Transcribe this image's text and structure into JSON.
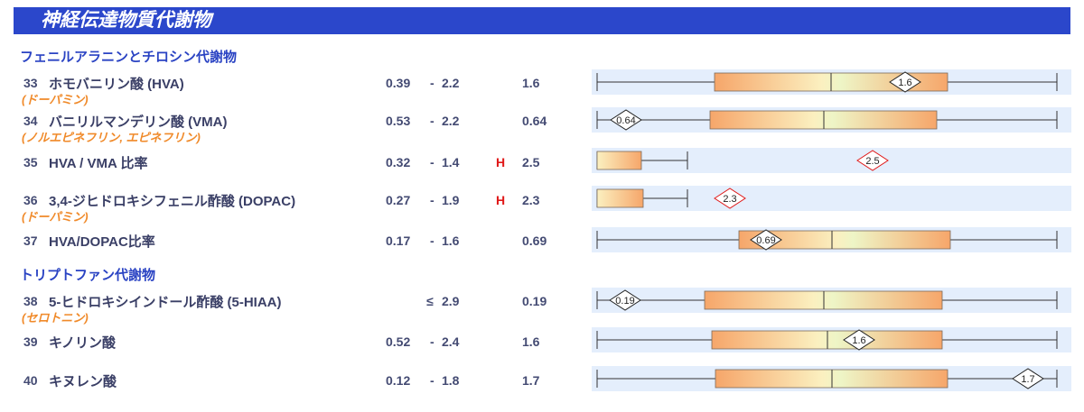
{
  "header": {
    "title": "神経伝達物質代謝物"
  },
  "sections": [
    {
      "label": "フェニルアラニンとチロシン代謝物"
    },
    {
      "label": "トリプトファン代謝物"
    }
  ],
  "rows": [
    {
      "num": "33",
      "name": "ホモバニリン酸 (HVA)",
      "sub": "(ドーパミン)",
      "low": "0.39",
      "dash": "-",
      "high": "2.2",
      "le": "",
      "flag": "",
      "value": "1.6",
      "marker": "1.6"
    },
    {
      "num": "34",
      "name": "バニリルマンデリン酸 (VMA)",
      "sub": "(ノルエピネフリン, エピネフリン)",
      "low": "0.53",
      "dash": "-",
      "high": "2.2",
      "le": "",
      "flag": "",
      "value": "0.64",
      "marker": "0.64"
    },
    {
      "num": "35",
      "name": "HVA / VMA 比率",
      "sub": "",
      "low": "0.32",
      "dash": "-",
      "high": "1.4",
      "le": "",
      "flag": "H",
      "value": "2.5",
      "marker": "2.5"
    },
    {
      "num": "36",
      "name": "3,4-ジヒドロキシフェニル酢酸 (DOPAC)",
      "sub": "(ドーパミン)",
      "low": "0.27",
      "dash": "-",
      "high": "1.9",
      "le": "",
      "flag": "H",
      "value": "2.3",
      "marker": "2.3"
    },
    {
      "num": "37",
      "name": "HVA/DOPAC比率",
      "sub": "",
      "low": "0.17",
      "dash": "-",
      "high": "1.6",
      "le": "",
      "flag": "",
      "value": "0.69",
      "marker": "0.69"
    },
    {
      "num": "38",
      "name": "5-ヒドロキシインドール酢酸 (5-HIAA)",
      "sub": "(セロトニン)",
      "low": "",
      "dash": "",
      "high": "2.9",
      "le": "≤",
      "flag": "",
      "value": "0.19",
      "marker": "0.19"
    },
    {
      "num": "39",
      "name": "キノリン酸",
      "sub": "",
      "low": "0.52",
      "dash": "-",
      "high": "2.4",
      "le": "",
      "flag": "",
      "value": "1.6",
      "marker": "1.6"
    },
    {
      "num": "40",
      "name": "キヌレン酸",
      "sub": "",
      "low": "0.12",
      "dash": "-",
      "high": "1.8",
      "le": "",
      "flag": "",
      "value": "1.7",
      "marker": "1.7"
    }
  ],
  "colors": {
    "banner": "#2b47cb",
    "section": "#2a43c3",
    "substance": "#f08a2a",
    "flag_high": "#e01818",
    "track": "#e4eefc",
    "marker_normal": "#222222",
    "marker_high": "#e01818"
  }
}
